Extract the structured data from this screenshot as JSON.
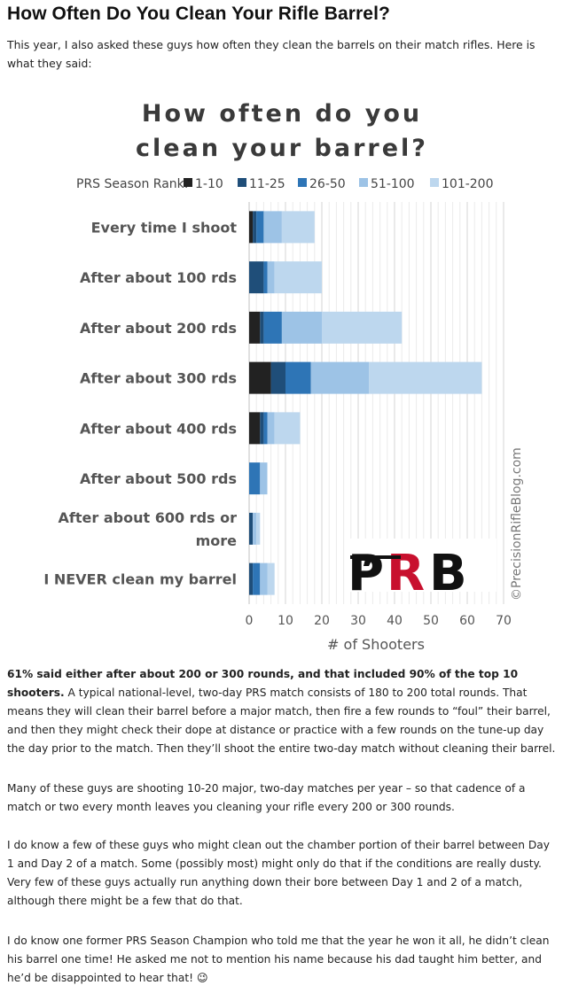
{
  "article": {
    "heading": "How Often Do You Clean Your Rifle Barrel?",
    "intro": "This year, I also asked these guys how often they clean the barrels on their match rifles. Here is what they said:",
    "p1_bold": "61% said either after about 200 or 300 rounds, and that included 90% of the top 10 shooters.",
    "p1_rest": " A typical national-level, two-day PRS match consists of 180 to 200 total rounds. That means they will clean their barrel before a major match, then fire a few rounds to “foul” their barrel, and then they might check their dope at distance or practice with a few rounds on the tune-up day the day prior to the match. Then they’ll shoot the entire two-day match without cleaning their barrel.",
    "p2": "Many of these guys are shooting 10-20 major, two-day matches per year – so that cadence of a match or two every month leaves you cleaning your rifle every 200 or 300 rounds.",
    "p3": "I do know a few of these guys who might clean out the chamber portion of their barrel between Day 1 and Day 2 of a match. Some (possibly most) might only do that if the conditions are really dusty. Very few of these guys actually run anything down their bore between Day 1 and 2 of a match, although there might be a few that do that.",
    "p4": "I do know one former PRS Season Champion who told me that the year he won it all, he didn’t clean his barrel one time! He asked me not to mention his name because his dad taught him better, and he’d be disappointed to hear that! 😉"
  },
  "chart_data": {
    "type": "bar",
    "orientation": "horizontal",
    "stacked": true,
    "title_lines": [
      "How often do you",
      "clean your barrel?"
    ],
    "legend_title": "PRS Season Rank:",
    "legend_placement": "top",
    "categories": [
      "Every time I shoot",
      "After about 100 rds",
      "After about 200 rds",
      "After about 300 rds",
      "After about 400 rds",
      "After about 500 rds",
      "After about 600 rds or more",
      "I NEVER clean my barrel"
    ],
    "category_lines": [
      [
        "Every time I shoot"
      ],
      [
        "After about 100 rds"
      ],
      [
        "After about 200 rds"
      ],
      [
        "After about 300 rds"
      ],
      [
        "After about 400 rds"
      ],
      [
        "After about 500 rds"
      ],
      [
        "After about 600 rds or",
        "more"
      ],
      [
        "I NEVER clean my barrel"
      ]
    ],
    "series": [
      {
        "name": "1-10",
        "color": "#222222",
        "values": [
          1,
          0,
          3,
          6,
          3,
          0,
          0,
          0
        ]
      },
      {
        "name": "11-25",
        "color": "#1f4e79",
        "values": [
          1,
          4,
          1,
          4,
          1,
          0,
          1,
          1
        ]
      },
      {
        "name": "26-50",
        "color": "#2e75b6",
        "values": [
          2,
          1,
          5,
          7,
          1,
          3,
          0,
          2
        ]
      },
      {
        "name": "51-100",
        "color": "#9dc3e6",
        "values": [
          5,
          2,
          11,
          16,
          2,
          2,
          1,
          2
        ]
      },
      {
        "name": "101-200",
        "color": "#bdd7ee",
        "values": [
          9,
          13,
          22,
          31,
          7,
          0,
          1,
          2
        ]
      }
    ],
    "xlabel": "# of Shooters",
    "xlim": [
      0,
      70
    ],
    "xticks": [
      0,
      10,
      20,
      30,
      40,
      50,
      60,
      70
    ],
    "grid": true,
    "watermark": "©PrecisionRifleBlog.com",
    "logo_text": "PRB"
  }
}
